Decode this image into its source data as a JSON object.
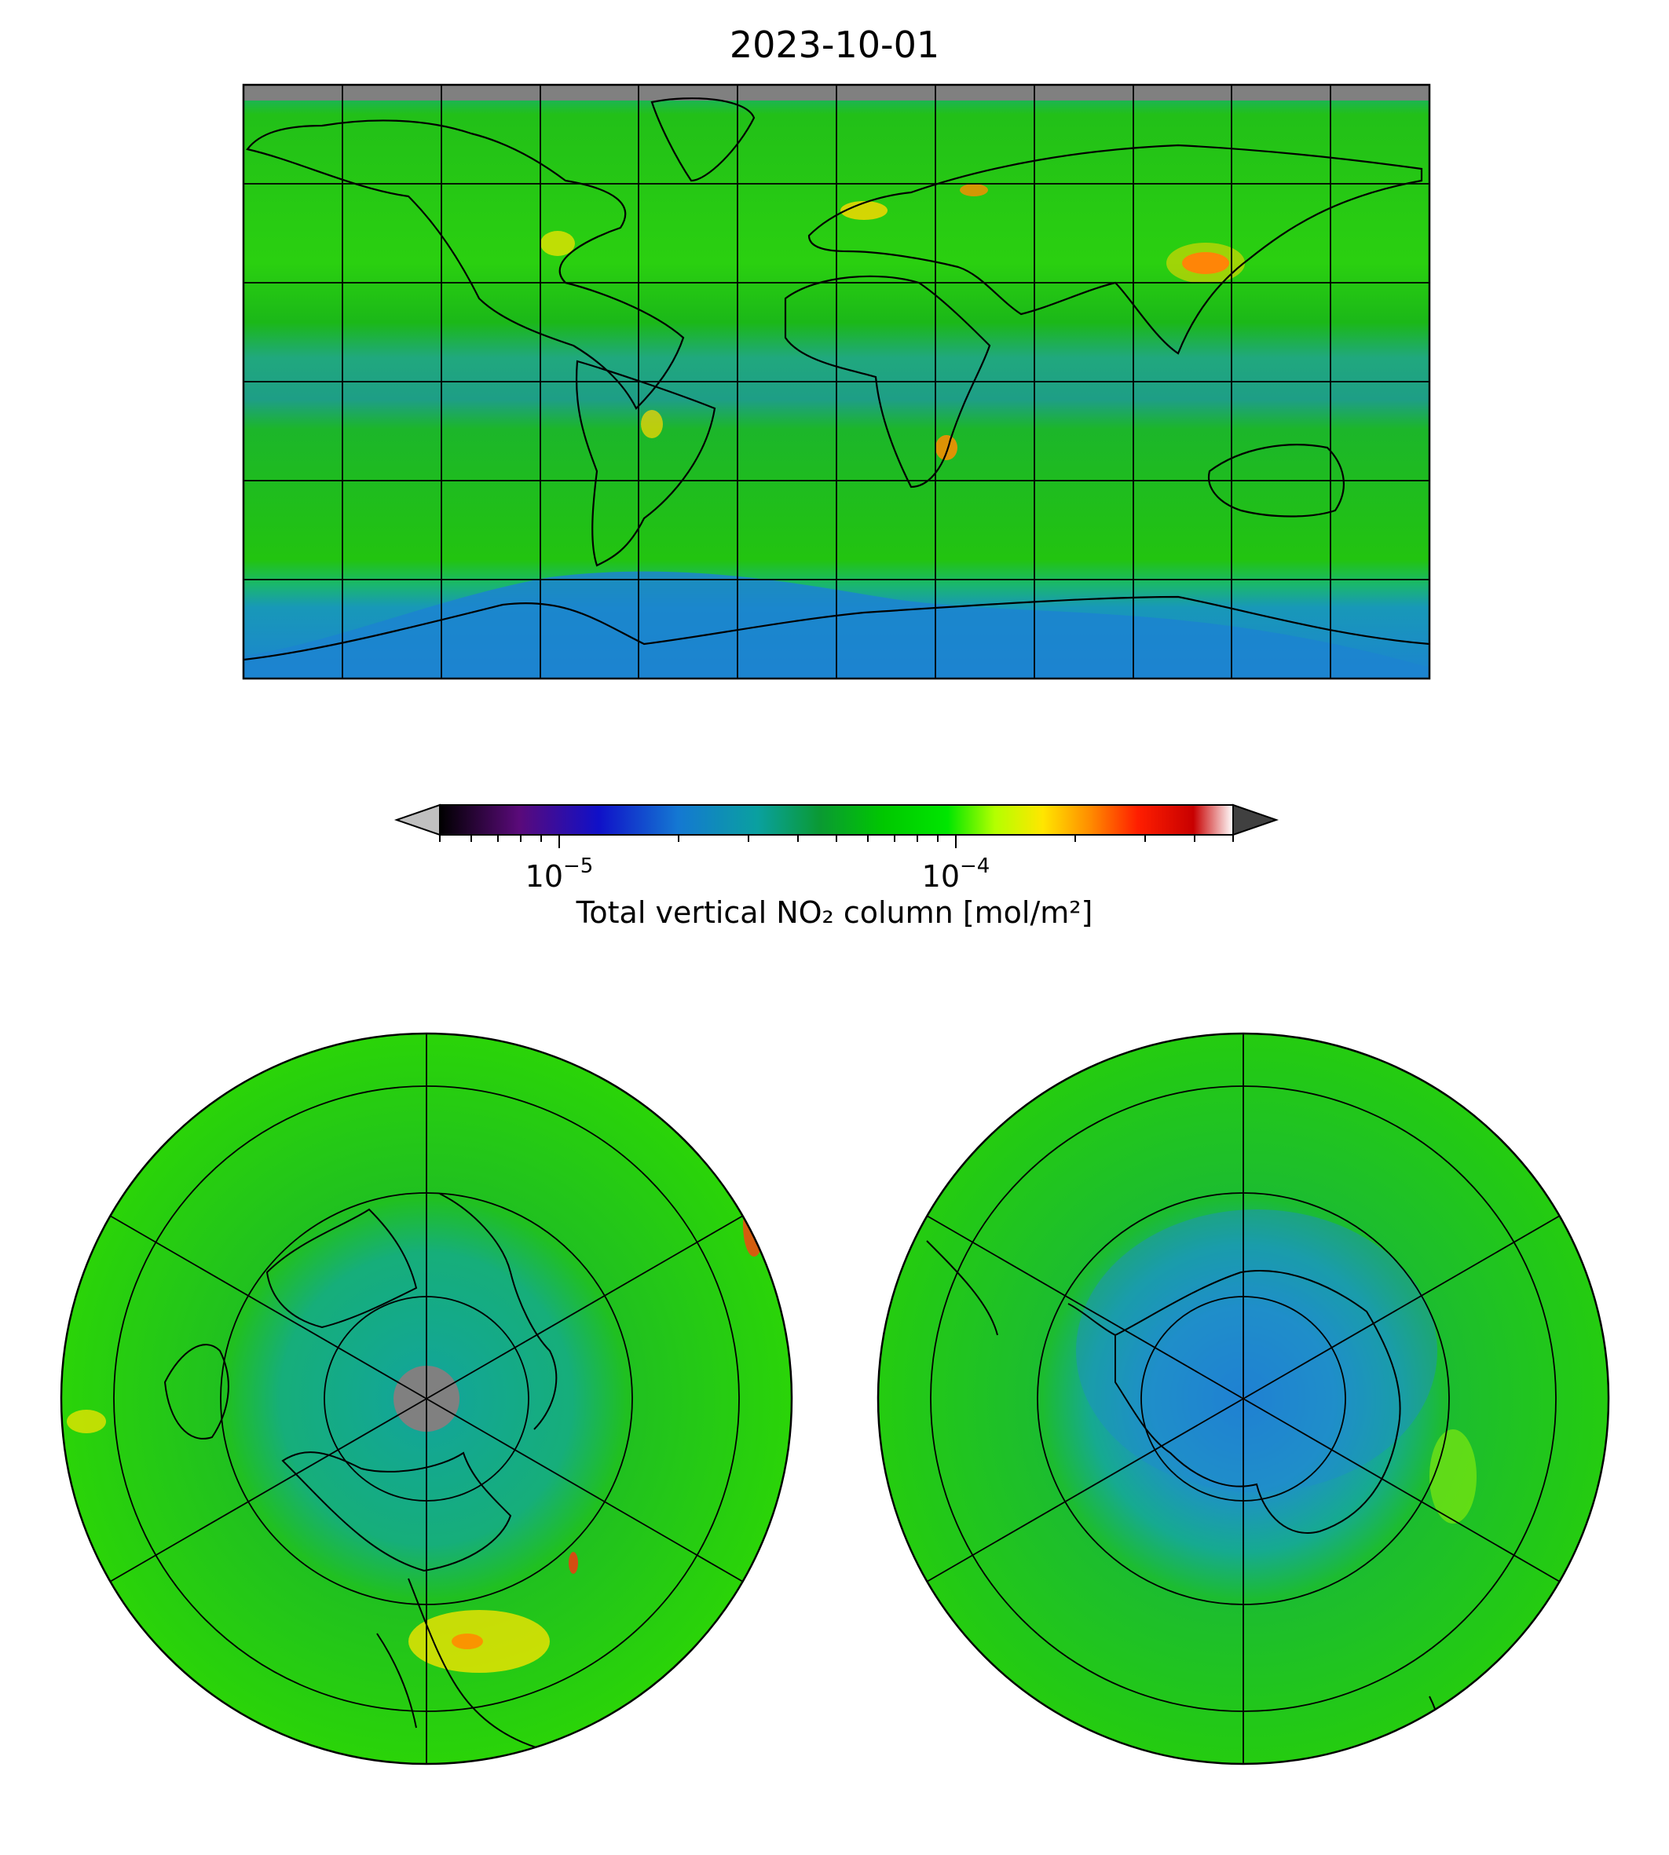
{
  "title": "2023-10-01",
  "colorbar": {
    "label": "Total vertical NO₂ column [mol/m²]",
    "scale": "log",
    "range": [
      5e-06,
      0.0005
    ],
    "major_ticks": [
      {
        "base": "10",
        "exp": "−5",
        "value": 1e-05
      },
      {
        "base": "10",
        "exp": "−4",
        "value": 0.0001
      }
    ],
    "stops": [
      "#000000",
      "#5a0a7a",
      "#1010c8",
      "#1478d2",
      "#0aa0a0",
      "#0a9a32",
      "#00c800",
      "#00e600",
      "#b4ff00",
      "#ffe600",
      "#ff8c00",
      "#ff1e00",
      "#c80000",
      "#ffffff"
    ],
    "extend": "both"
  },
  "colors": {
    "field_green": "#1fcc08",
    "field_bright": "#30e000",
    "tropic_teal": "#1ea87c",
    "ocean_teal": "#12a49c",
    "antarctic_blue": "#1f87d0",
    "hotspot_yellow": "#ffd800",
    "hotspot_red": "#ff2010",
    "polar_gap": "#808080"
  },
  "maps": [
    {
      "projection": "PlateCarree",
      "extent": "global"
    },
    {
      "projection": "NorthPolarStereo"
    },
    {
      "projection": "SouthPolarStereo"
    }
  ]
}
